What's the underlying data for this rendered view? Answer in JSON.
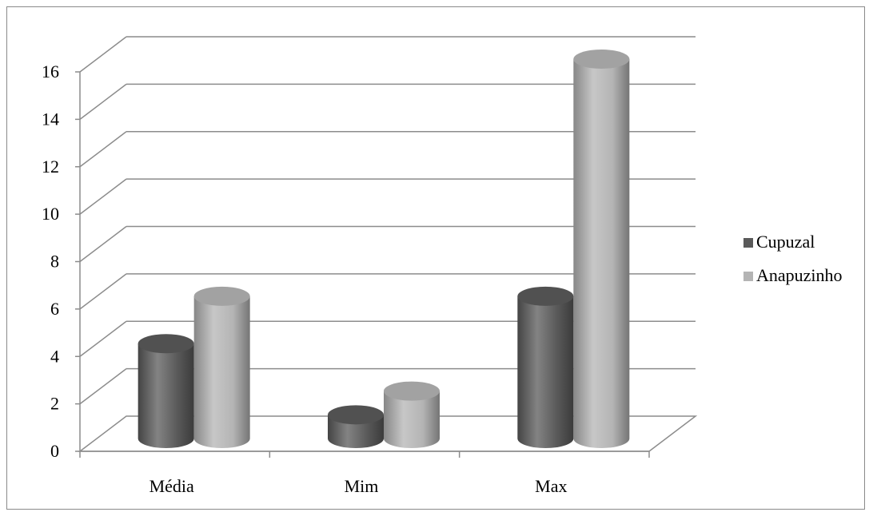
{
  "chart_data": {
    "type": "bar",
    "style": "3d-cylinder",
    "title": "",
    "xlabel": "",
    "ylabel": "",
    "categories": [
      "Média",
      "Mim",
      "Max"
    ],
    "series": [
      {
        "name": "Cupuzal",
        "values": [
          4,
          1,
          6
        ],
        "color": "#5a5a5a"
      },
      {
        "name": "Anapuzinho",
        "values": [
          6,
          2,
          16
        ],
        "color": "#b4b4b4"
      }
    ],
    "ylim": [
      0,
      16
    ],
    "yticks": [
      0,
      2,
      4,
      6,
      8,
      10,
      12,
      14,
      16
    ],
    "grid": true,
    "legend_position": "right"
  }
}
